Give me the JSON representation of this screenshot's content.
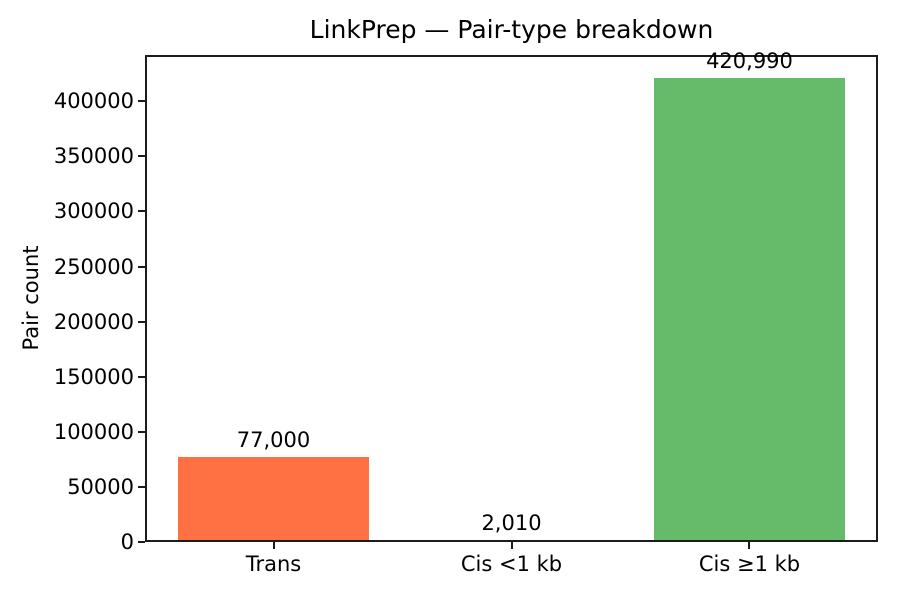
{
  "figure": {
    "background": "#ffffff",
    "axis_color": "#1c1c1c",
    "text_color": "#000000"
  },
  "chart_data": {
    "type": "bar",
    "title": "LinkPrep — Pair-type breakdown",
    "xlabel": "",
    "ylabel": "Pair count",
    "categories": [
      "Trans",
      "Cis <1 kb",
      "Cis ≥1 kb"
    ],
    "values": [
      77000,
      2010,
      420990
    ],
    "bar_value_labels": [
      "77,000",
      "2,010",
      "420,990"
    ],
    "bar_colors": [
      "#FF7043",
      "#9E9E9E",
      "#66BB6A"
    ],
    "bar_width_fraction": 0.8,
    "y_ticks": [
      0,
      50000,
      100000,
      150000,
      200000,
      250000,
      300000,
      350000,
      400000
    ],
    "y_tick_labels": [
      "0",
      "50000",
      "100000",
      "150000",
      "200000",
      "250000",
      "300000",
      "350000",
      "400000"
    ],
    "ylim": [
      0,
      442040
    ],
    "grid": false,
    "legend": null
  }
}
